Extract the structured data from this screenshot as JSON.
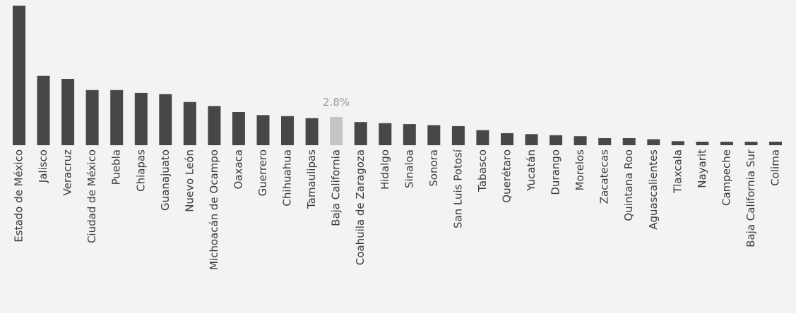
{
  "chart_data": {
    "type": "bar",
    "title": "",
    "xlabel": "",
    "ylabel": "",
    "ylim": [
      0,
      13.9
    ],
    "grid": false,
    "categories": [
      "Estado de México",
      "Jalisco",
      "Veracruz",
      "Ciudad de México",
      "Puebla",
      "Chiapas",
      "Guanajuato",
      "Nuevo León",
      "Michoacán de Ocampo",
      "Oaxaca",
      "Guerrero",
      "Chihuahua",
      "Tamaulipas",
      "Baja California",
      "Coahuila de Zaragoza",
      "Hidalgo",
      "Sinaloa",
      "Sonora",
      "San Luis Potosí",
      "Tabasco",
      "Querétaro",
      "Yucatán",
      "Durango",
      "Morelos",
      "Zacatecas",
      "Quintana Roo",
      "Aguascalientes",
      "Tlaxcala",
      "Nayarit",
      "Campeche",
      "Baja California Sur",
      "Colima"
    ],
    "values": [
      13.9,
      6.9,
      6.6,
      5.5,
      5.5,
      5.2,
      5.1,
      4.3,
      3.9,
      3.3,
      3.0,
      2.9,
      2.7,
      2.8,
      2.3,
      2.2,
      2.1,
      2.0,
      1.9,
      1.5,
      1.2,
      1.1,
      1.0,
      0.9,
      0.7,
      0.7,
      0.6,
      0.4,
      0.3,
      0.2,
      0.1,
      0.1
    ],
    "highlight_index": 13,
    "highlight_label": "2.8%",
    "bar_color": "#474747",
    "highlight_color": "#c4c4c4",
    "label_color": "#9a9a9a"
  }
}
